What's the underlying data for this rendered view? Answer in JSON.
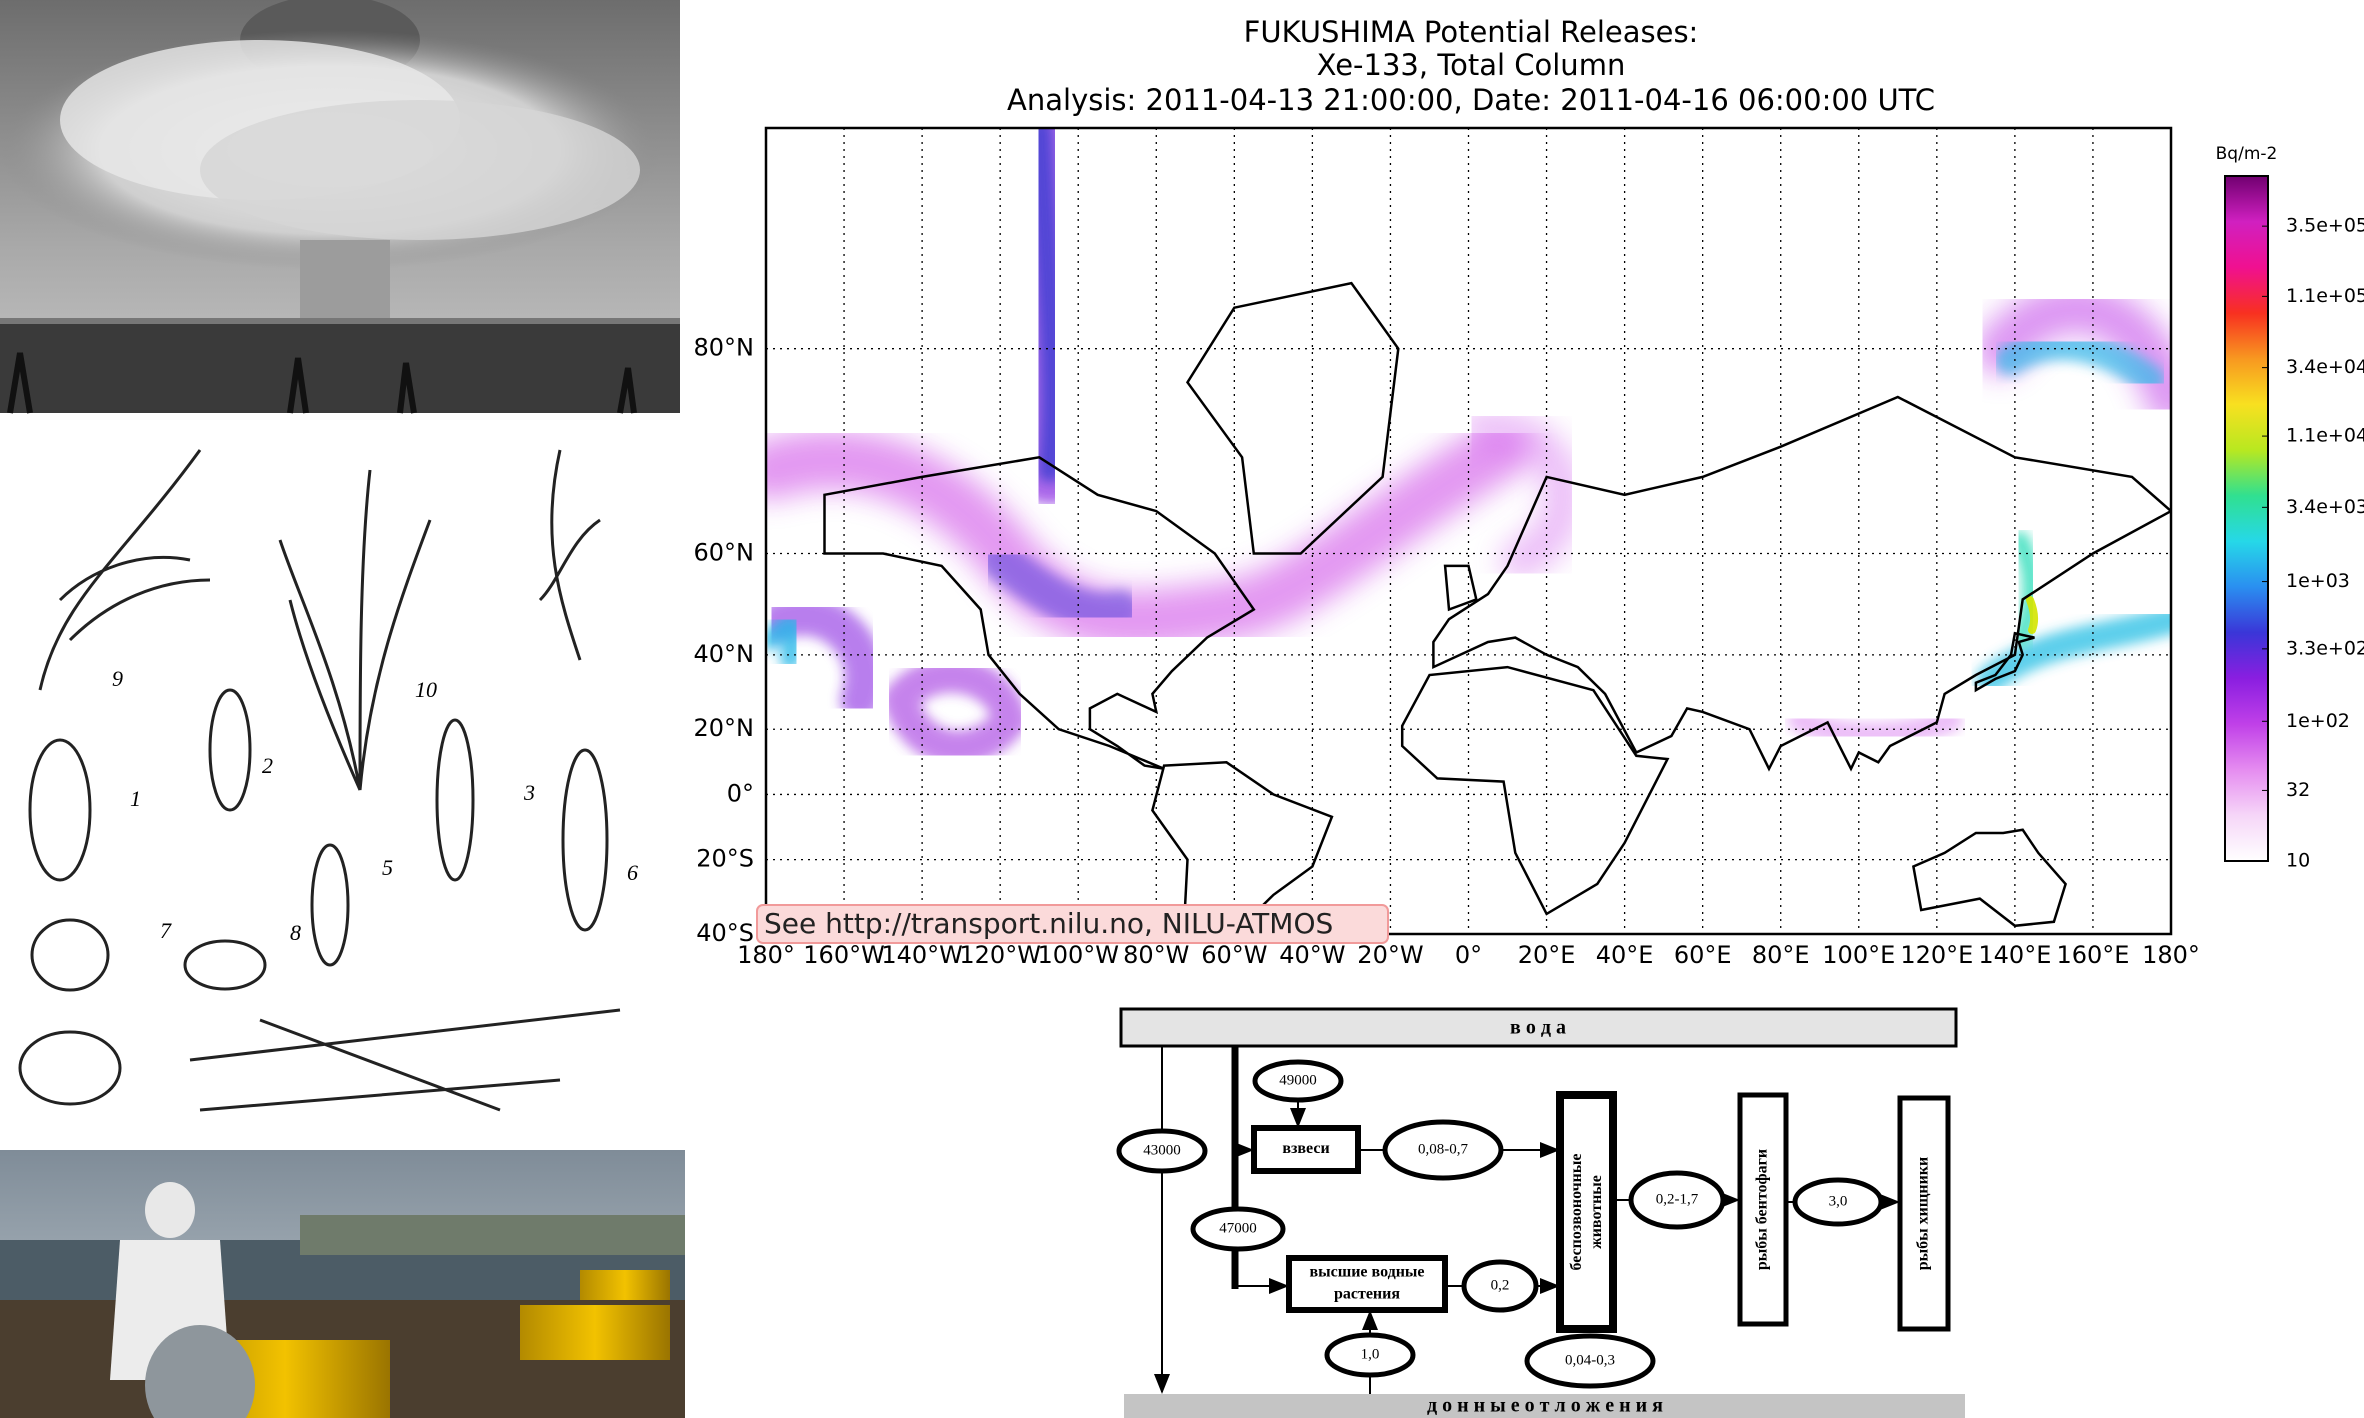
{
  "figure_labels": [
    "9",
    "2",
    "1",
    "10",
    "3",
    "5",
    "6",
    "7",
    "8"
  ],
  "map": {
    "title": [
      "FUKUSHIMA Potential Releases:",
      "Xe-133, Total Column",
      "Analysis: 2011-04-13  21:00:00, Date: 2011-04-16  06:00:00 UTC"
    ],
    "xlim": [
      -180,
      180
    ],
    "ylim": [
      -40,
      87
    ],
    "grid": true,
    "lat_ticks": [
      {
        "value": 80,
        "label": "80°N"
      },
      {
        "value": 60,
        "label": "60°N"
      },
      {
        "value": 40,
        "label": "40°N"
      },
      {
        "value": 20,
        "label": "20°N"
      },
      {
        "value": 0,
        "label": "0°"
      },
      {
        "value": -20,
        "label": "20°S"
      },
      {
        "value": -40,
        "label": "40°S"
      }
    ],
    "lon_ticks": [
      {
        "value": -180,
        "label": "180°"
      },
      {
        "value": -160,
        "label": "160°W"
      },
      {
        "value": -140,
        "label": "140°W"
      },
      {
        "value": -120,
        "label": "120°W"
      },
      {
        "value": -100,
        "label": "100°W"
      },
      {
        "value": -80,
        "label": "80°W"
      },
      {
        "value": -60,
        "label": "60°W"
      },
      {
        "value": -40,
        "label": "40°W"
      },
      {
        "value": -20,
        "label": "20°W"
      },
      {
        "value": 0,
        "label": "0°"
      },
      {
        "value": 20,
        "label": "20°E"
      },
      {
        "value": 40,
        "label": "40°E"
      },
      {
        "value": 60,
        "label": "60°E"
      },
      {
        "value": 80,
        "label": "80°E"
      },
      {
        "value": 100,
        "label": "100°E"
      },
      {
        "value": 120,
        "label": "120°E"
      },
      {
        "value": 140,
        "label": "140°E"
      },
      {
        "value": 160,
        "label": "160°E"
      },
      {
        "value": 180,
        "label": "180°"
      }
    ],
    "colorbar": {
      "unit": "Bq/m-2",
      "scale": "log",
      "lim": [
        10,
        800000
      ],
      "ticks": [
        {
          "value": 350000,
          "label": "3.5e+05"
        },
        {
          "value": 110000,
          "label": "1.1e+05"
        },
        {
          "value": 34000,
          "label": "3.4e+04"
        },
        {
          "value": 11000,
          "label": "1.1e+04"
        },
        {
          "value": 3400,
          "label": "3.4e+03"
        },
        {
          "value": 1000,
          "label": "1e+03"
        },
        {
          "value": 330,
          "label": "3.3e+02"
        },
        {
          "value": 100,
          "label": "1e+02"
        },
        32,
        10
      ]
    },
    "attribution": "See http://transport.nilu.no, NILU-ATMOS"
  },
  "diagram": {
    "top": "в о д а",
    "bottom": "д о н н ы е   о т л о ж е н и я",
    "nodes": [
      {
        "label": "49000"
      },
      {
        "label": "взвеси"
      },
      {
        "label": "0,08-0,7"
      },
      {
        "label": "43000"
      },
      {
        "label": "47000"
      },
      {
        "label": "высшие водные"
      },
      {
        "label": "растения"
      },
      {
        "label": "0,2"
      },
      {
        "label": "1,0"
      },
      {
        "label": "беспозвоночные"
      },
      {
        "label": "животные"
      },
      {
        "label": "0,04-0,3"
      },
      {
        "label": "0,2-1,7"
      },
      {
        "label": "рыбы бентофаги"
      },
      {
        "label": "3,0"
      },
      {
        "label": "рыбы хищники"
      }
    ]
  }
}
